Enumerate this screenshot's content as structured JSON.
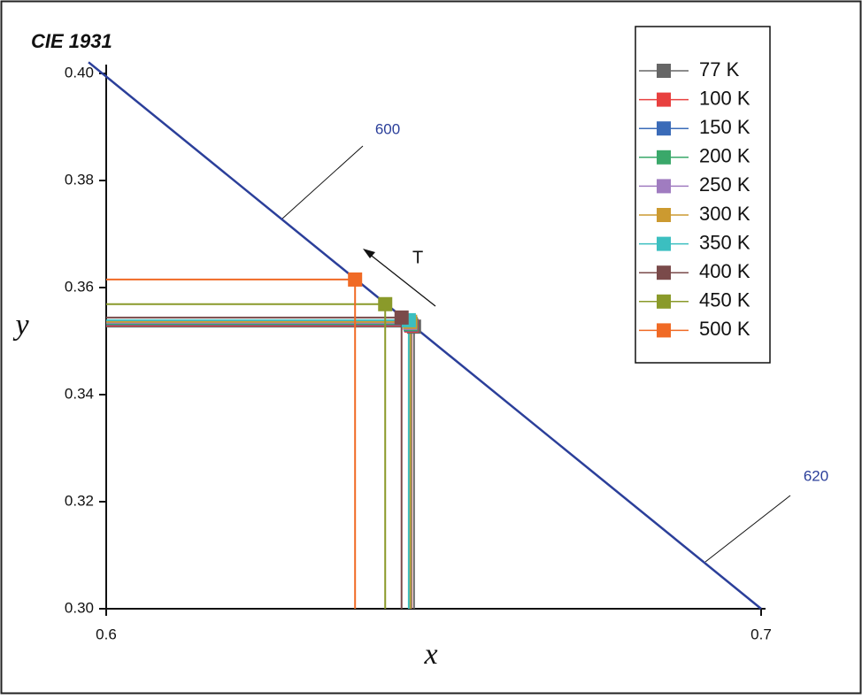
{
  "chart_data": {
    "type": "scatter",
    "title": "CIE 1931",
    "x_label": "x",
    "y_label": "y",
    "xlim": [
      0.6,
      0.7
    ],
    "ylim": [
      0.3,
      0.4
    ],
    "xticks": [
      0.6,
      0.7
    ],
    "yticks": [
      {
        "value": 0.3,
        "label": "0.30"
      },
      {
        "value": 0.32,
        "label": "0.32"
      },
      {
        "value": 0.34,
        "label": "0.34"
      },
      {
        "value": 0.36,
        "label": "0.36"
      },
      {
        "value": 0.38,
        "label": "0.38"
      },
      {
        "value": 0.4,
        "label": "0.40"
      }
    ],
    "series": [
      {
        "name": "77 K",
        "color": "#666666",
        "x": [
          0.647
        ],
        "values": [
          0.3527
        ]
      },
      {
        "name": "100 K",
        "color": "#e8403f",
        "x": [
          0.6466
        ],
        "values": [
          0.3529
        ]
      },
      {
        "name": "150 K",
        "color": "#3a6bb8",
        "x": [
          0.6465
        ],
        "values": [
          0.3531
        ]
      },
      {
        "name": "200 K",
        "color": "#3aa86a",
        "x": [
          0.6465
        ],
        "values": [
          0.3532
        ]
      },
      {
        "name": "250 K",
        "color": "#a07cc0",
        "x": [
          0.6464
        ],
        "values": [
          0.3534
        ]
      },
      {
        "name": "300 K",
        "color": "#cc9a30",
        "x": [
          0.6464
        ],
        "values": [
          0.3536
        ]
      },
      {
        "name": "350 K",
        "color": "#3bbfc0",
        "x": [
          0.6462
        ],
        "values": [
          0.3539
        ]
      },
      {
        "name": "400 K",
        "color": "#7a4a4a",
        "x": [
          0.6451
        ],
        "values": [
          0.3544
        ]
      },
      {
        "name": "450 K",
        "color": "#8a9a2a",
        "x": [
          0.6426
        ],
        "values": [
          0.3569
        ]
      },
      {
        "name": "500 K",
        "color": "#f06a25",
        "x": [
          0.638
        ],
        "values": [
          0.3615
        ]
      }
    ],
    "locus": {
      "color": "#2b3f9a",
      "x": [
        0.5973,
        0.7
      ],
      "values": [
        0.4021,
        0.3
      ]
    },
    "annotations": [
      "600",
      "620",
      "T"
    ]
  }
}
